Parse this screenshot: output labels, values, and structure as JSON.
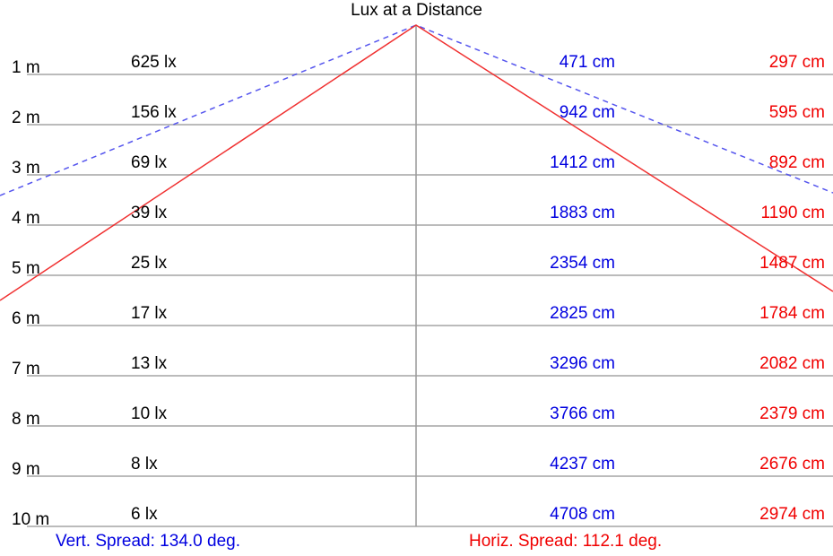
{
  "title": "Lux at a Distance",
  "rows": [
    {
      "distance": "1 m",
      "lux": "625 lx",
      "vert": "471 cm",
      "horiz": "297 cm"
    },
    {
      "distance": "2 m",
      "lux": "156 lx",
      "vert": "942 cm",
      "horiz": "595 cm"
    },
    {
      "distance": "3 m",
      "lux": "69 lx",
      "vert": "1412 cm",
      "horiz": "892 cm"
    },
    {
      "distance": "4 m",
      "lux": "39 lx",
      "vert": "1883 cm",
      "horiz": "1190 cm"
    },
    {
      "distance": "5 m",
      "lux": "25 lx",
      "vert": "2354 cm",
      "horiz": "1487 cm"
    },
    {
      "distance": "6 m",
      "lux": "17 lx",
      "vert": "2825 cm",
      "horiz": "1784 cm"
    },
    {
      "distance": "7 m",
      "lux": "13 lx",
      "vert": "3296 cm",
      "horiz": "2082 cm"
    },
    {
      "distance": "8 m",
      "lux": "10 lx",
      "vert": "3766 cm",
      "horiz": "2379 cm"
    },
    {
      "distance": "9 m",
      "lux": "8 lx",
      "vert": "4237 cm",
      "horiz": "2676 cm"
    },
    {
      "distance": "10 m",
      "lux": "6 lx",
      "vert": "4708 cm",
      "horiz": "2974 cm"
    }
  ],
  "vert_spread": "Vert. Spread: 134.0 deg.",
  "horiz_spread": "Horiz. Spread: 112.1 deg.",
  "vert_spread_deg": 134.0,
  "horiz_spread_deg": 112.1,
  "colors": {
    "vertical": "#0000e0",
    "vertical_line": "#5555ee",
    "horizontal": "#f00000",
    "grid": "#bbbbbb",
    "axis": "#999999"
  }
}
